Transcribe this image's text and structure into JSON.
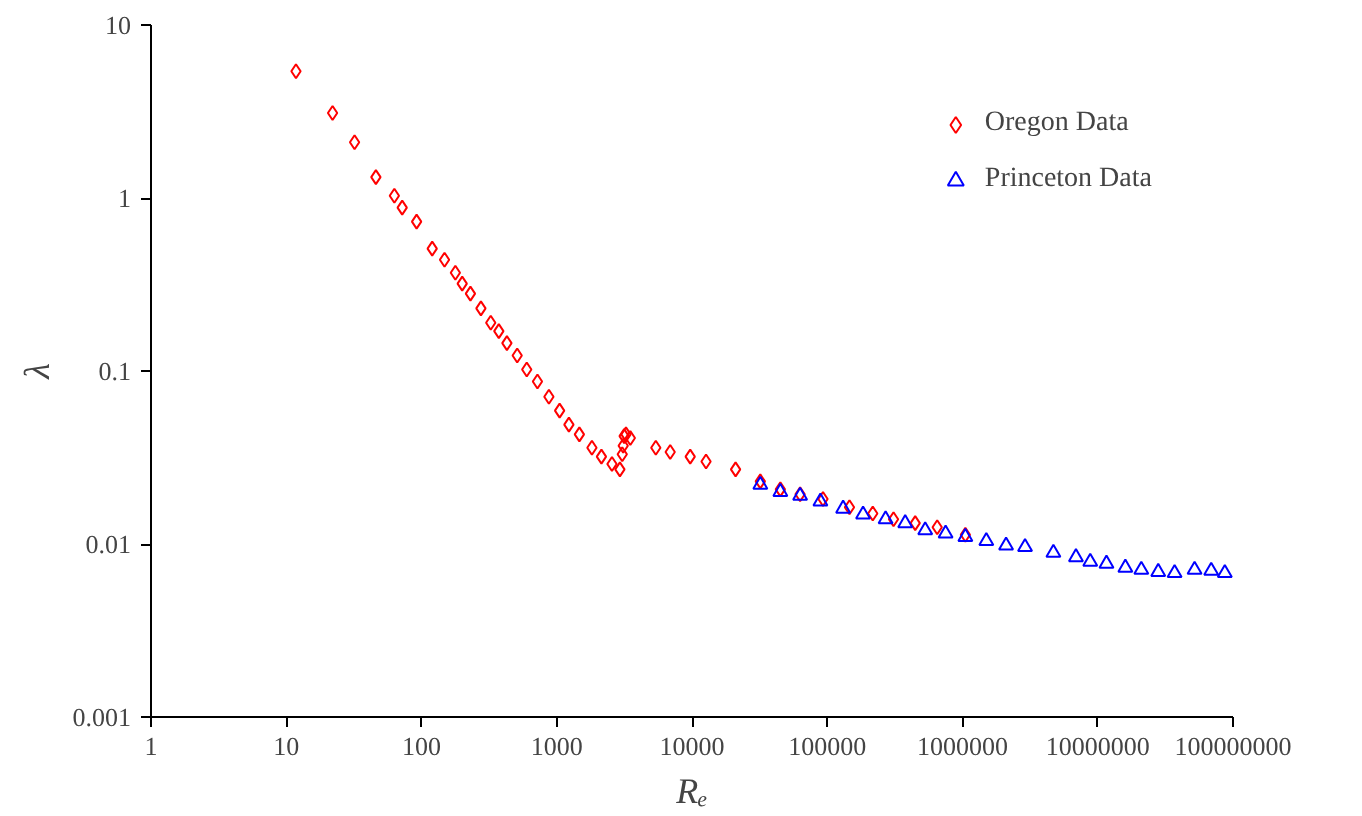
{
  "chart_data": {
    "type": "scatter",
    "xlabel": "Rₑ",
    "ylabel": "λ",
    "log": "xy",
    "xlim": [
      1,
      100000000
    ],
    "ylim": [
      0.001,
      10
    ],
    "xticks": [
      1,
      10,
      100,
      1000,
      10000,
      100000,
      1000000,
      10000000,
      100000000
    ],
    "yticks": [
      0.001,
      0.01,
      0.1,
      1,
      10
    ],
    "grid": false,
    "legend": "top right",
    "series": [
      {
        "name": "Oregon Data",
        "color": "#ff0000",
        "marker": "diamond",
        "x": [
          11.8,
          22,
          32,
          46,
          63,
          72,
          92,
          120,
          148,
          178,
          200,
          230,
          275,
          325,
          373,
          428,
          510,
          600,
          720,
          875,
          1050,
          1230,
          1470,
          1820,
          2140,
          2560,
          2930,
          3050,
          3100,
          3150,
          3250,
          3500,
          5400,
          6900,
          9700,
          12700,
          21000,
          32000,
          45000,
          63000,
          93000,
          146000,
          217000,
          309000,
          447000,
          650000,
          1050000
        ],
        "values": [
          5.4,
          3.1,
          2.1,
          1.32,
          1.03,
          0.88,
          0.73,
          0.51,
          0.44,
          0.37,
          0.32,
          0.28,
          0.23,
          0.19,
          0.17,
          0.145,
          0.123,
          0.102,
          0.087,
          0.071,
          0.059,
          0.049,
          0.043,
          0.036,
          0.032,
          0.029,
          0.027,
          0.033,
          0.037,
          0.042,
          0.043,
          0.041,
          0.036,
          0.034,
          0.032,
          0.03,
          0.027,
          0.023,
          0.0207,
          0.0194,
          0.0182,
          0.0163,
          0.015,
          0.0139,
          0.0132,
          0.0125,
          0.0113
        ]
      },
      {
        "name": "Princeton Data",
        "color": "#0000ff",
        "marker": "triangle",
        "x": [
          32000,
          45000,
          63000,
          89000,
          131000,
          184000,
          270000,
          377000,
          530000,
          750000,
          1050000,
          1500000,
          2100000,
          2900000,
          4700000,
          6900000,
          8800000,
          11600000,
          16000000,
          21000000,
          28000000,
          37000000,
          52000000,
          69000000,
          87000000
        ],
        "values": [
          0.022,
          0.02,
          0.019,
          0.0176,
          0.016,
          0.0148,
          0.0139,
          0.0132,
          0.012,
          0.0115,
          0.011,
          0.0104,
          0.0098,
          0.0096,
          0.0089,
          0.0084,
          0.0079,
          0.0077,
          0.0073,
          0.0071,
          0.0069,
          0.0068,
          0.0071,
          0.007,
          0.0068
        ]
      }
    ]
  }
}
